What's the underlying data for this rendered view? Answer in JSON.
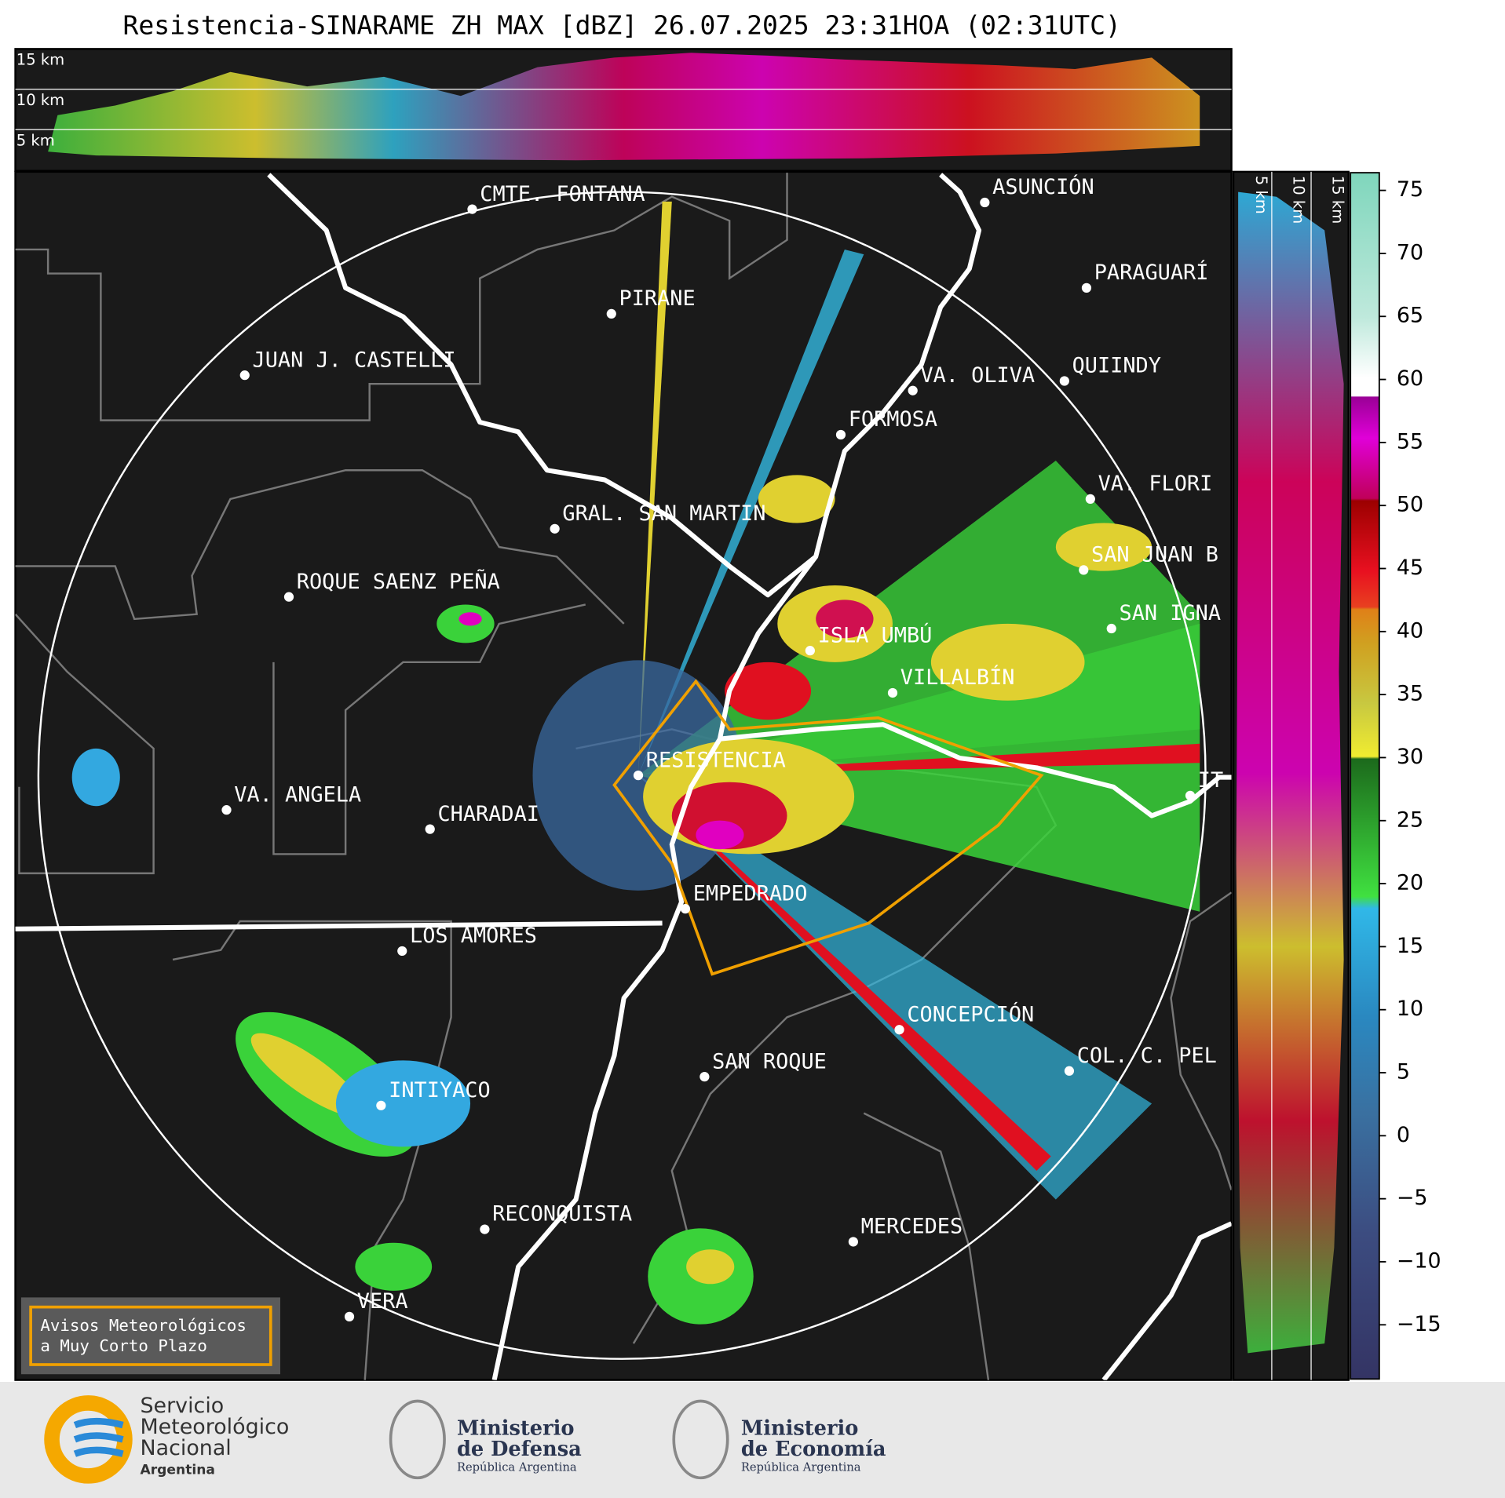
{
  "title": "Resistencia-SINARAME ZH MAX [dBZ] 26.07.2025 23:31HOA (02:31UTC)",
  "height_labels_top": [
    "15 km",
    "10 km",
    "5 km"
  ],
  "height_labels_side": [
    "5 km",
    "10 km",
    "15 km"
  ],
  "cities": [
    "CMTE. FONTANA",
    "PIRANE",
    "JUAN J. CASTELLI",
    "ASUNCIÓN",
    "PARAGUARÍ",
    "VA. OLIVA",
    "QUIINDY",
    "FORMOSA",
    "VA. FLORI",
    "GRAL. SAN MARTIN",
    "SAN JUAN B",
    "ROQUE SAENZ PEÑA",
    "SAN IGNA",
    "ISLA UMBÚ",
    "VILLALBÍN",
    "RESISTENCIA",
    "VA. ANGELA",
    "CHARADAI",
    "IT",
    "EMPEDRADO",
    "LOS AMORES",
    "CONCEPCIÓN",
    "COL. C. PEL",
    "SAN ROQUE",
    "INTIYACO",
    "RECONQUISTA",
    "MERCEDES",
    "VERA"
  ],
  "colorbar": {
    "lim": [
      -19.3,
      76.4
    ],
    "ticks": [
      75,
      70,
      65,
      60,
      55,
      50,
      45,
      40,
      35,
      30,
      25,
      20,
      15,
      10,
      5,
      0,
      {
        "value": -5,
        "label": "−5"
      },
      {
        "value": -10,
        "label": "−10"
      },
      {
        "value": -15,
        "label": "−15"
      }
    ]
  },
  "warning_box": [
    "Avisos Meteorológicos",
    "a Muy Corto Plazo"
  ],
  "logos": {
    "smn": [
      "Servicio",
      "Meteorológico",
      "Nacional",
      "Argentina"
    ],
    "defensa": [
      "Ministerio",
      "de Defensa",
      "República Argentina"
    ],
    "economia": [
      "Ministerio",
      "de Economía",
      "República Argentina"
    ]
  }
}
